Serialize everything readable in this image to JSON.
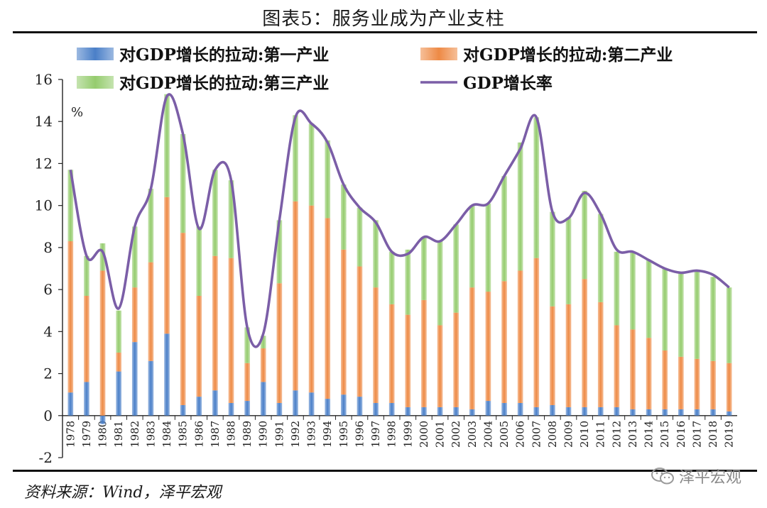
{
  "title": "图表5：服务业成为产业支柱",
  "source": "资料来源：Wind，泽平宏观",
  "watermark": "泽平宏观",
  "watermark_icon": "wechat-icon",
  "unit_label": "%",
  "colors": {
    "primary": "#4a7fc8",
    "secondary": "#ee8a45",
    "tertiary": "#95cc6e",
    "line": "#7b5ea7"
  },
  "chart_data": {
    "type": "bar",
    "stacked": true,
    "categories": [
      "1978",
      "1979",
      "1980",
      "1981",
      "1982",
      "1983",
      "1984",
      "1985",
      "1986",
      "1987",
      "1988",
      "1989",
      "1990",
      "1991",
      "1992",
      "1993",
      "1994",
      "1995",
      "1996",
      "1997",
      "1998",
      "1999",
      "2000",
      "2001",
      "2002",
      "2003",
      "2004",
      "2005",
      "2006",
      "2007",
      "2008",
      "2009",
      "2010",
      "2011",
      "2012",
      "2013",
      "2014",
      "2015",
      "2016",
      "2017",
      "2018",
      "2019"
    ],
    "ylim": [
      -2,
      16
    ],
    "yticks": [
      -2,
      0,
      2,
      4,
      6,
      8,
      10,
      12,
      14,
      16
    ],
    "grid": false,
    "legend_position": "top",
    "series": [
      {
        "name": "对GDP增长的拉动:第一产业",
        "kind": "bar",
        "values": [
          1.1,
          1.6,
          -0.4,
          2.1,
          3.5,
          2.6,
          3.9,
          0.5,
          0.9,
          1.2,
          0.6,
          0.7,
          1.6,
          0.6,
          1.2,
          1.1,
          0.8,
          1.0,
          0.9,
          0.6,
          0.6,
          0.4,
          0.4,
          0.4,
          0.4,
          0.3,
          0.7,
          0.6,
          0.6,
          0.4,
          0.5,
          0.4,
          0.4,
          0.4,
          0.4,
          0.3,
          0.3,
          0.3,
          0.3,
          0.3,
          0.3,
          0.2
        ]
      },
      {
        "name": "对GDP增长的拉动:第二产业",
        "kind": "bar",
        "values": [
          7.2,
          4.1,
          6.9,
          0.9,
          2.6,
          4.7,
          6.5,
          8.2,
          4.8,
          6.4,
          6.9,
          1.8,
          1.6,
          5.7,
          9.0,
          8.9,
          8.6,
          6.9,
          6.2,
          5.5,
          4.7,
          4.4,
          5.1,
          3.9,
          4.5,
          5.8,
          5.2,
          5.8,
          6.3,
          7.1,
          4.7,
          4.9,
          6.1,
          5.0,
          3.9,
          3.8,
          3.4,
          2.8,
          2.5,
          2.4,
          2.3,
          2.3
        ]
      },
      {
        "name": "对GDP增长的拉动:第三产业",
        "kind": "bar",
        "values": [
          3.4,
          1.9,
          1.3,
          2.0,
          2.9,
          3.5,
          4.9,
          4.7,
          3.3,
          4.1,
          3.7,
          1.7,
          0.6,
          3.0,
          4.1,
          3.9,
          3.7,
          3.1,
          2.8,
          3.2,
          2.5,
          3.1,
          3.0,
          4.0,
          4.2,
          3.9,
          4.2,
          5.0,
          6.1,
          6.7,
          4.5,
          4.1,
          4.2,
          4.2,
          3.5,
          3.7,
          3.7,
          3.9,
          4.0,
          4.2,
          4.0,
          3.6
        ]
      },
      {
        "name": "GDP增长率",
        "kind": "line",
        "values": [
          11.7,
          7.6,
          7.8,
          5.1,
          9.0,
          10.8,
          15.2,
          13.4,
          8.9,
          11.7,
          11.2,
          4.2,
          3.9,
          9.3,
          14.2,
          13.9,
          13.0,
          11.0,
          9.9,
          9.2,
          7.8,
          7.7,
          8.5,
          8.3,
          9.1,
          10.0,
          10.1,
          11.4,
          12.7,
          14.2,
          9.7,
          9.4,
          10.6,
          9.6,
          7.9,
          7.8,
          7.4,
          7.0,
          6.8,
          6.9,
          6.7,
          6.1
        ]
      }
    ]
  }
}
